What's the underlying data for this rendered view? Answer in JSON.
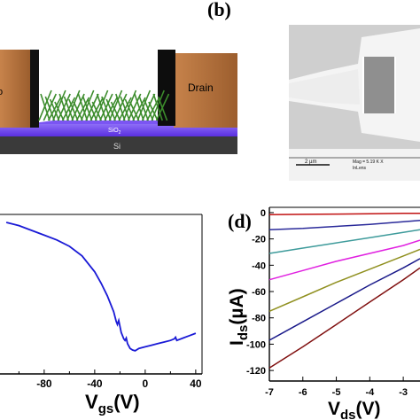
{
  "panel_b": {
    "label": "(b)"
  },
  "panel_d": {
    "label": "(d)"
  },
  "device_schematic": {
    "source_label": "o",
    "drain_label": "Drain",
    "oxide_label": "SiO",
    "oxide_subscript": "2",
    "substrate_label": "Si"
  },
  "sem_image": {
    "scale_label": "2 µm",
    "mag_label": "Mag =  5.19 K X",
    "detector_label": "InLens"
  },
  "colors": {
    "transfer_curve": "#1a1ad6",
    "gate_electrode": "#b7743f",
    "oxide": "#6a3df0",
    "substrate": "#3a3a3a"
  },
  "chart_data": [
    {
      "type": "line",
      "xlabel": "V",
      "xlabel_sub": "gs",
      "xlabel_unit": "(V)",
      "xlim": [
        -115,
        45
      ],
      "ylim": [
        0,
        1
      ],
      "x_ticks": [
        -80,
        -40,
        0,
        40
      ],
      "series": [
        {
          "x": [
            -110,
            -100,
            -90,
            -80,
            -70,
            -60,
            -50,
            -40,
            -35,
            -30,
            -25,
            -23,
            -22,
            -21,
            -19,
            -17,
            -16,
            -15,
            -14,
            -12,
            -10,
            -8,
            -5,
            0,
            5,
            10,
            15,
            20,
            23,
            24,
            25,
            30,
            35,
            40
          ],
          "y": [
            0.95,
            0.93,
            0.9,
            0.87,
            0.84,
            0.8,
            0.74,
            0.64,
            0.57,
            0.49,
            0.39,
            0.33,
            0.31,
            0.335,
            0.26,
            0.22,
            0.21,
            0.225,
            0.19,
            0.16,
            0.15,
            0.145,
            0.16,
            0.17,
            0.18,
            0.19,
            0.2,
            0.21,
            0.22,
            0.23,
            0.21,
            0.225,
            0.24,
            0.255
          ]
        }
      ]
    },
    {
      "type": "line",
      "ylabel": "I",
      "ylabel_sub": "ds",
      "ylabel_unit": "(µA)",
      "xlabel": "V",
      "xlabel_sub": "ds",
      "xlabel_unit": "(V)",
      "xlim": [
        -7,
        -2.5
      ],
      "ylim": [
        -128,
        4
      ],
      "x_ticks": [
        -7,
        -6,
        -5,
        -4,
        -3
      ],
      "y_ticks": [
        0,
        -20,
        -40,
        -60,
        -80,
        -100,
        -120
      ],
      "series": [
        {
          "color": "#c01010",
          "x": [
            -7,
            -6,
            -5,
            -4,
            -3,
            -2.5
          ],
          "y": [
            -1.5,
            -1.3,
            -1.1,
            -0.9,
            -0.6,
            -0.5
          ]
        },
        {
          "color": "#2a2a9a",
          "x": [
            -7,
            -6,
            -5,
            -4,
            -3,
            -2.5
          ],
          "y": [
            -13,
            -12,
            -10.5,
            -9,
            -7,
            -6
          ]
        },
        {
          "color": "#3e9b9b",
          "x": [
            -7,
            -6,
            -5,
            -4,
            -3,
            -2.5
          ],
          "y": [
            -31,
            -27,
            -23,
            -19,
            -15,
            -13
          ]
        },
        {
          "color": "#e020e0",
          "x": [
            -7,
            -6,
            -5,
            -4,
            -3,
            -2.5
          ],
          "y": [
            -51,
            -44,
            -37,
            -31,
            -25,
            -21
          ]
        },
        {
          "color": "#909020",
          "x": [
            -7,
            -6,
            -5,
            -4,
            -3,
            -2.5
          ],
          "y": [
            -75,
            -64,
            -53,
            -43,
            -33,
            -28
          ]
        },
        {
          "color": "#1a1a8a",
          "x": [
            -7,
            -6,
            -5,
            -4,
            -3,
            -2.5
          ],
          "y": [
            -97,
            -83,
            -69,
            -55,
            -42,
            -35
          ]
        },
        {
          "color": "#801010",
          "x": [
            -7,
            -6,
            -5,
            -4,
            -3,
            -2.5
          ],
          "y": [
            -118,
            -102,
            -85,
            -68,
            -51,
            -42
          ]
        }
      ]
    }
  ]
}
